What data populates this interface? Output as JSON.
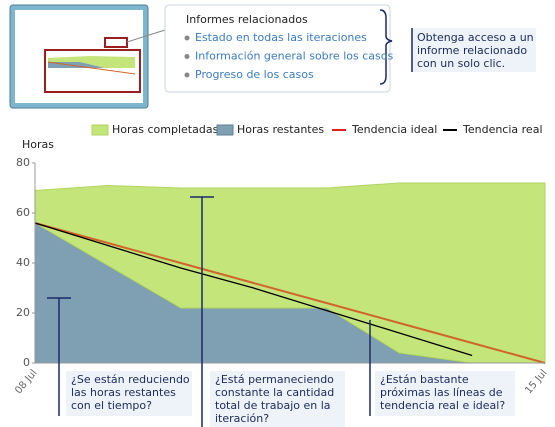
{
  "related_panel": {
    "title": "Informes relacionados",
    "links": [
      "Estado en todas las iteraciones",
      "Información general sobre los casos",
      "Progreso de los casos"
    ]
  },
  "callout": {
    "lines": [
      "Obtenga acceso a un",
      "informe relacionado",
      "con un solo clic."
    ]
  },
  "chart_data": {
    "type": "area",
    "stacked": true,
    "y_label": "Horas",
    "categories": [
      "08 Jul",
      null,
      null,
      null,
      null,
      null,
      null,
      "15 Jul"
    ],
    "series": [
      {
        "name": "Horas completadas",
        "color": "#c4e57a",
        "values": [
          13,
          32,
          48,
          48,
          48,
          68,
          72,
          72
        ]
      },
      {
        "name": "Horas restantes",
        "color": "#7f9fb2",
        "values": [
          56,
          39,
          22,
          22,
          22,
          4,
          0,
          0
        ]
      },
      {
        "name": "Tendencia ideal",
        "color": "#d0652c",
        "kind": "line",
        "values": [
          56,
          48,
          40,
          32,
          24,
          16,
          8,
          0
        ]
      },
      {
        "name": "Tendencia real",
        "color": "#000000",
        "kind": "line",
        "values": [
          56,
          47,
          38,
          30,
          21,
          12,
          3,
          null
        ]
      }
    ],
    "ylim": [
      0,
      80
    ],
    "yticks": [
      0,
      20,
      40,
      60,
      80
    ],
    "annotations": [
      {
        "lines": [
          "¿Se están reduciendo",
          "las horas restantes",
          "con el tiempo?"
        ]
      },
      {
        "lines": [
          "¿Está permaneciendo",
          "constante la cantidad",
          "total de trabajo en la",
          "iteración?"
        ]
      },
      {
        "lines": [
          "¿Están bastante",
          "próximas las líneas de",
          "tendencia real e ideal?"
        ]
      }
    ]
  }
}
